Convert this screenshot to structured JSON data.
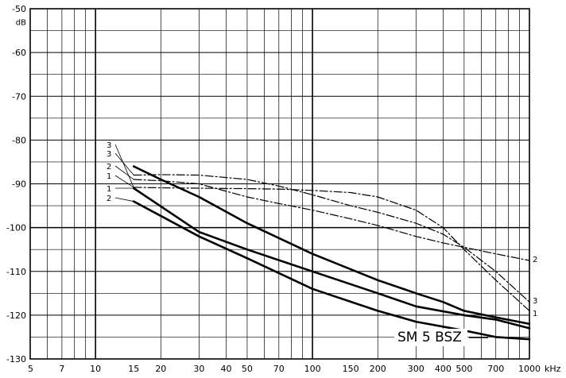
{
  "chart_data": {
    "type": "line",
    "title": "",
    "xlabel": "",
    "ylabel": "",
    "xscale": "log",
    "xlim": [
      5,
      1000
    ],
    "ylim": [
      -130,
      -50
    ],
    "grid": true,
    "x_unit": "kHz",
    "y_unit": "dB",
    "x_ticks": [
      5,
      7,
      10,
      15,
      20,
      30,
      40,
      50,
      70,
      100,
      150,
      200,
      300,
      400,
      500,
      700,
      1000
    ],
    "x_tick_labels": [
      "5",
      "7",
      "10",
      "15",
      "20",
      "30",
      "40",
      "50",
      "70",
      "100",
      "150",
      "200",
      "300",
      "400",
      "500",
      "700",
      "1000"
    ],
    "y_ticks": [
      -50,
      -60,
      -70,
      -80,
      -90,
      -100,
      -110,
      -120,
      -130
    ],
    "y_tick_labels": [
      "-50",
      "-60",
      "-70",
      "-80",
      "-90",
      "-100",
      "-110",
      "-120",
      "-130"
    ],
    "annotation": "SM 5 BSZ",
    "series": [
      {
        "label": "1",
        "style": "solid",
        "x": [
          15,
          30,
          50,
          100,
          200,
          300,
          500,
          700,
          1000
        ],
        "y": [
          -91,
          -101,
          -105,
          -110,
          -115,
          -118,
          -120,
          -121,
          -123
        ]
      },
      {
        "label": "2",
        "style": "solid",
        "x": [
          15,
          30,
          50,
          100,
          200,
          300,
          500,
          700,
          1000
        ],
        "y": [
          -94,
          -102,
          -107,
          -114,
          -119,
          -121.5,
          -123.5,
          -125,
          -125.5
        ]
      },
      {
        "label": "3",
        "style": "solid",
        "x": [
          15,
          20,
          30,
          50,
          100,
          200,
          300,
          400,
          500,
          700,
          1000
        ],
        "y": [
          -86,
          -89,
          -93,
          -99,
          -106,
          -112,
          -115,
          -117,
          -119,
          -120.5,
          -122
        ]
      },
      {
        "label": "1",
        "style": "dashdot",
        "x": [
          15,
          20,
          30,
          50,
          70,
          100,
          150,
          200,
          300,
          400,
          500,
          700,
          1000
        ],
        "y": [
          -90.8,
          -90.9,
          -91,
          -91.1,
          -91.2,
          -91.5,
          -92,
          -93,
          -96,
          -100,
          -105,
          -112,
          -119
        ]
      },
      {
        "label": "2",
        "style": "dashdot",
        "x": [
          15,
          20,
          30,
          50,
          70,
          100,
          150,
          200,
          300,
          400,
          500,
          700,
          1000
        ],
        "y": [
          -89,
          -89.3,
          -90,
          -93,
          -94.5,
          -96,
          -98,
          -99.5,
          -102,
          -103.5,
          -104.5,
          -106,
          -107.5
        ]
      },
      {
        "label": "3",
        "style": "dashdot",
        "x": [
          15,
          20,
          30,
          50,
          70,
          100,
          150,
          200,
          300,
          400,
          500,
          700,
          1000
        ],
        "y": [
          -88,
          -87.9,
          -88,
          -89,
          -90.5,
          -92.5,
          -95,
          -96.5,
          -99,
          -101.5,
          -104.5,
          -110,
          -117
        ]
      }
    ],
    "left_label_order": [
      "3",
      "3",
      "2",
      "1",
      "1",
      "2"
    ],
    "right_label_order": [
      "2",
      "3",
      "1"
    ]
  }
}
